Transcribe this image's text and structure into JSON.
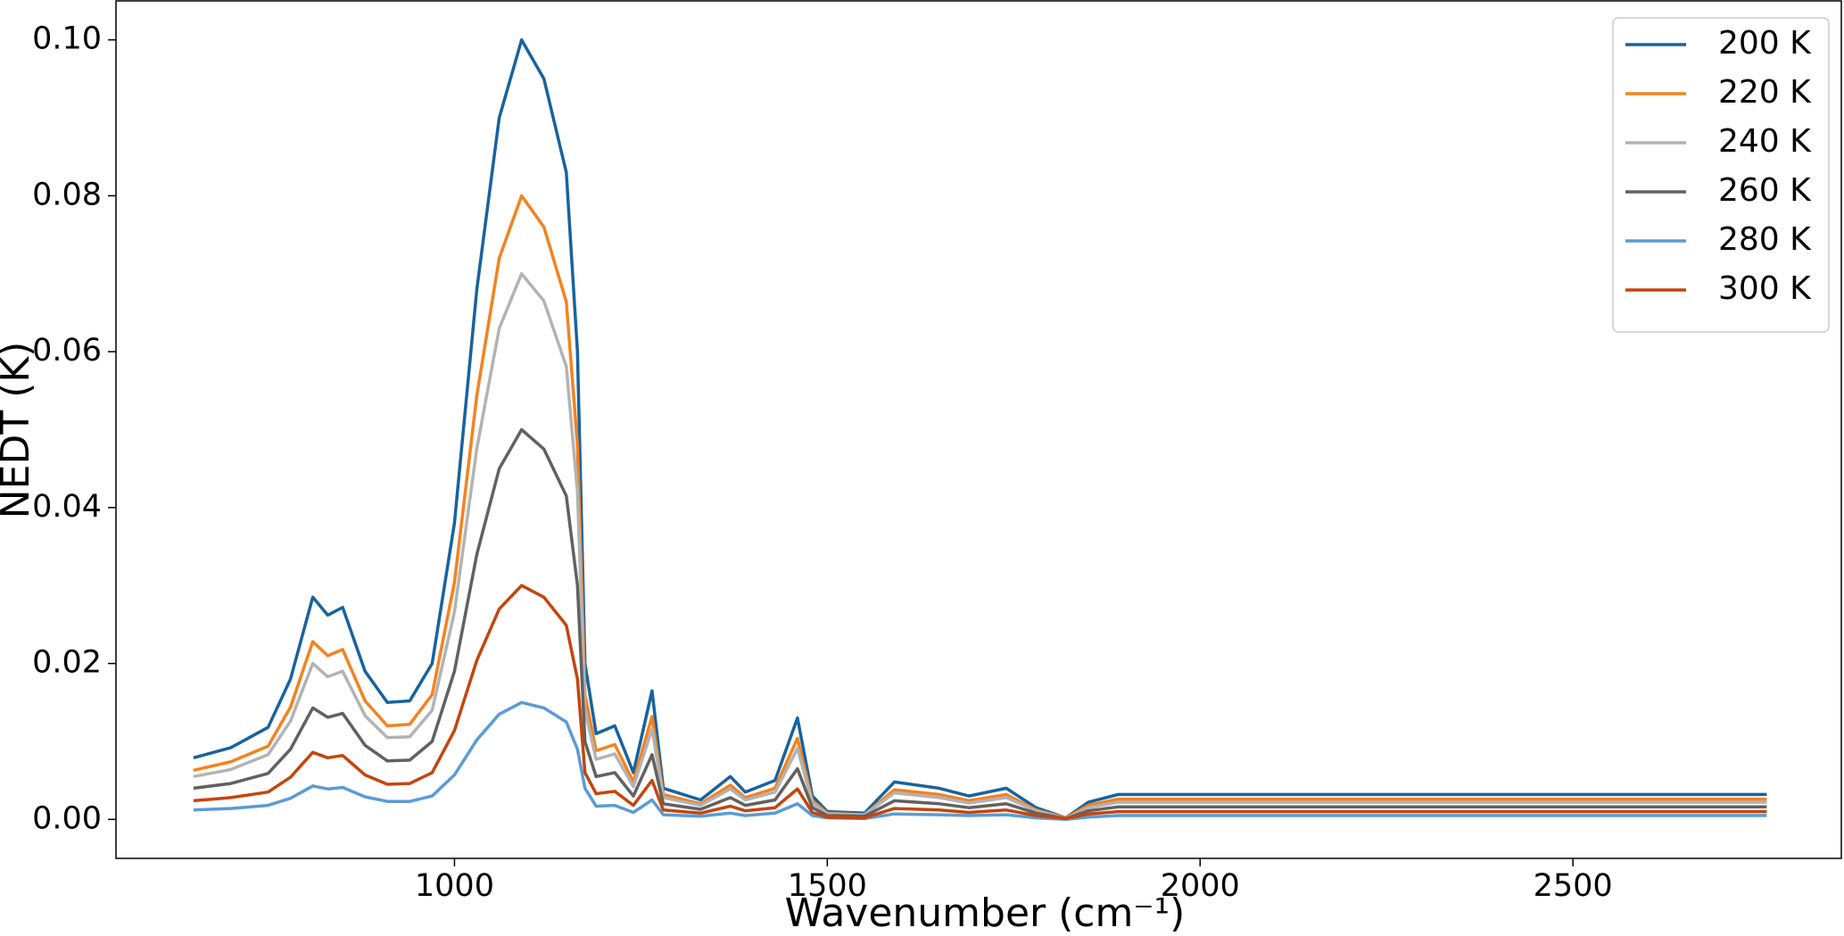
{
  "chart_data": {
    "type": "line",
    "xlabel": "Wavenumber (cm⁻¹)",
    "ylabel": "NEDT (K)",
    "xlim": [
      546,
      2860
    ],
    "ylim": [
      -0.005,
      0.105
    ],
    "xticks": [
      1000,
      1500,
      2000,
      2500
    ],
    "yticks": [
      {
        "value": 0,
        "label": "0.00"
      },
      {
        "value": 0.02,
        "label": "0.02"
      },
      {
        "value": 0.04,
        "label": "0.04"
      },
      {
        "value": 0.06,
        "label": "0.06"
      },
      {
        "value": 0.08,
        "label": "0.08"
      },
      {
        "value": 0.1,
        "label": "0.10"
      }
    ],
    "legend": "upper right",
    "x": [
      650,
      700,
      750,
      780,
      810,
      830,
      850,
      880,
      910,
      940,
      970,
      1000,
      1030,
      1060,
      1090,
      1120,
      1150,
      1165,
      1175,
      1190,
      1215,
      1240,
      1265,
      1280,
      1330,
      1370,
      1390,
      1430,
      1460,
      1480,
      1500,
      1550,
      1590,
      1650,
      1690,
      1740,
      1780,
      1820,
      1850,
      1890,
      2760
    ],
    "series": [
      {
        "name": "200 K",
        "color": "#17639f",
        "values": [
          0.0079,
          0.0092,
          0.0118,
          0.018,
          0.0285,
          0.0262,
          0.0272,
          0.019,
          0.015,
          0.0152,
          0.02,
          0.038,
          0.068,
          0.09,
          0.1,
          0.095,
          0.083,
          0.06,
          0.02,
          0.011,
          0.012,
          0.006,
          0.0165,
          0.004,
          0.0025,
          0.0055,
          0.0035,
          0.005,
          0.013,
          0.003,
          0.001,
          0.0008,
          0.0048,
          0.004,
          0.003,
          0.004,
          0.0015,
          0.0002,
          0.0022,
          0.0032,
          0.0032
        ]
      },
      {
        "name": "220 K",
        "color": "#f5821f",
        "values": [
          0.0063,
          0.0074,
          0.0094,
          0.0144,
          0.0228,
          0.021,
          0.0218,
          0.0152,
          0.012,
          0.0122,
          0.016,
          0.0304,
          0.0544,
          0.072,
          0.08,
          0.076,
          0.0664,
          0.048,
          0.016,
          0.0088,
          0.0096,
          0.0048,
          0.0132,
          0.0032,
          0.002,
          0.0044,
          0.0028,
          0.004,
          0.0104,
          0.0024,
          0.0008,
          0.0006,
          0.0038,
          0.0032,
          0.0024,
          0.0032,
          0.0012,
          0.0002,
          0.0018,
          0.0026,
          0.0026
        ]
      },
      {
        "name": "240 K",
        "color": "#b3b3b3",
        "values": [
          0.0055,
          0.0064,
          0.0083,
          0.0126,
          0.02,
          0.0183,
          0.019,
          0.0133,
          0.0105,
          0.0106,
          0.014,
          0.0266,
          0.0476,
          0.063,
          0.07,
          0.0665,
          0.0581,
          0.042,
          0.014,
          0.0077,
          0.0084,
          0.0042,
          0.0116,
          0.0028,
          0.0018,
          0.0039,
          0.0025,
          0.0035,
          0.0091,
          0.0021,
          0.0007,
          0.0006,
          0.0034,
          0.0028,
          0.0021,
          0.0028,
          0.0011,
          0.0001,
          0.0015,
          0.0022,
          0.0022
        ]
      },
      {
        "name": "260 K",
        "color": "#616161",
        "values": [
          0.004,
          0.0046,
          0.0059,
          0.009,
          0.0143,
          0.0131,
          0.0136,
          0.0095,
          0.0075,
          0.0076,
          0.01,
          0.019,
          0.034,
          0.045,
          0.05,
          0.0475,
          0.0415,
          0.03,
          0.01,
          0.0055,
          0.006,
          0.003,
          0.0083,
          0.002,
          0.0013,
          0.0028,
          0.0018,
          0.0025,
          0.0065,
          0.0015,
          0.0005,
          0.0004,
          0.0024,
          0.002,
          0.0015,
          0.002,
          0.0008,
          0.0001,
          0.0011,
          0.0016,
          0.0016
        ]
      },
      {
        "name": "280 K",
        "color": "#5b9bd5",
        "values": [
          0.0012,
          0.0014,
          0.0018,
          0.0027,
          0.0043,
          0.0039,
          0.0041,
          0.0029,
          0.0023,
          0.0023,
          0.003,
          0.0057,
          0.0102,
          0.0135,
          0.015,
          0.0143,
          0.0125,
          0.009,
          0.004,
          0.0017,
          0.0018,
          0.0009,
          0.0025,
          0.0006,
          0.0004,
          0.0008,
          0.0005,
          0.0008,
          0.002,
          0.0005,
          0.0002,
          0.0001,
          0.0007,
          0.0006,
          0.0005,
          0.0006,
          0.0002,
          0,
          0.0003,
          0.0005,
          0.0005
        ]
      },
      {
        "name": "300 K",
        "color": "#c4450f",
        "values": [
          0.0024,
          0.0028,
          0.0035,
          0.0054,
          0.0086,
          0.0079,
          0.0082,
          0.0057,
          0.0045,
          0.0046,
          0.006,
          0.0114,
          0.0204,
          0.027,
          0.03,
          0.0285,
          0.0249,
          0.018,
          0.006,
          0.0033,
          0.0036,
          0.0018,
          0.005,
          0.0012,
          0.0008,
          0.0017,
          0.0011,
          0.0015,
          0.0039,
          0.0009,
          0.0003,
          0.0002,
          0.0014,
          0.0012,
          0.0009,
          0.0012,
          0.0005,
          0.0001,
          0.0007,
          0.001,
          0.001
        ]
      }
    ]
  }
}
